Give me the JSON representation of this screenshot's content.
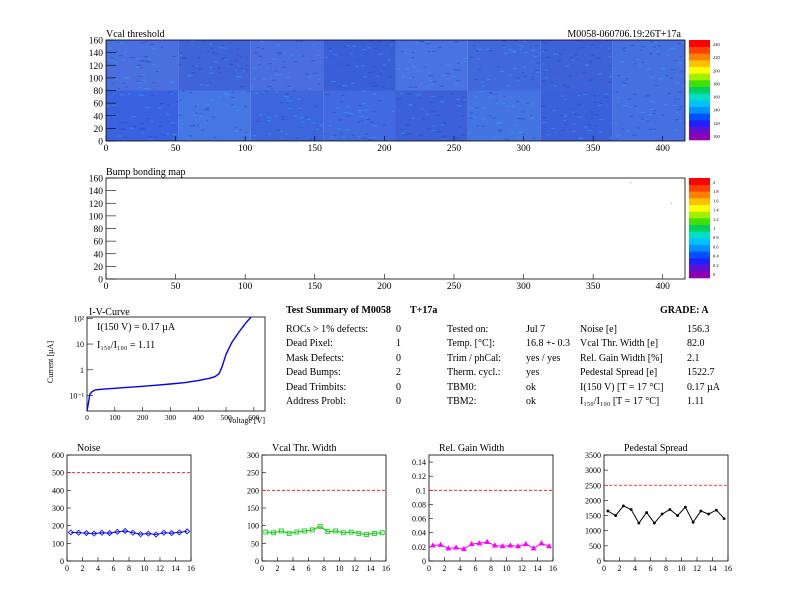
{
  "module_label": "M0058-060706.19:26T+17a",
  "maps": [
    {
      "title": "Vcal threshold",
      "xlim": [
        0,
        416
      ],
      "ylim": [
        0,
        160
      ],
      "xticks": [
        "0",
        "50",
        "100",
        "150",
        "200",
        "250",
        "300",
        "350",
        "400"
      ],
      "yticks": [
        "0",
        "20",
        "40",
        "60",
        "80",
        "100",
        "120",
        "140",
        "160"
      ],
      "zticks": [
        "100",
        "120",
        "140",
        "160",
        "180",
        "200",
        "220",
        "240"
      ],
      "roc_grid": {
        "cols": 8,
        "rows": 2,
        "roc_width": 52,
        "roc_height": 80
      }
    },
    {
      "title": "Bump bonding map",
      "xlim": [
        0,
        416
      ],
      "ylim": [
        0,
        160
      ],
      "xticks": [
        "0",
        "50",
        "100",
        "150",
        "200",
        "250",
        "300",
        "350",
        "400"
      ],
      "yticks": [
        "0",
        "20",
        "40",
        "60",
        "80",
        "100",
        "120",
        "140",
        "160"
      ],
      "zticks": [
        "0",
        "0.2",
        "0.4",
        "0.6",
        "0.8",
        "1",
        "1.2",
        "1.4",
        "1.6",
        "1.8",
        "2"
      ]
    }
  ],
  "iv_curve": {
    "title": "I-V-Curve",
    "xlabel": "Voltage [V]",
    "ylabel": "Current [µA]",
    "xticks": [
      "0",
      "100",
      "200",
      "300",
      "400",
      "500",
      "600"
    ],
    "yticks": [
      "10⁻¹",
      "1",
      "10",
      "10²"
    ],
    "annotation_1": "I(150 V) = 0.17 µA",
    "annotation_2": "I₁₅₀/I₁₀₀ = 1.11",
    "color": "#0000ff"
  },
  "summary": {
    "heading_left": "Test Summary of M0058",
    "heading_mid": "T+17a",
    "grade": "GRADE:  A",
    "col1": [
      {
        "label": "ROCs > 1% defects:",
        "value": "0"
      },
      {
        "label": "Dead Pixel:",
        "value": "1"
      },
      {
        "label": "Mask Defects:",
        "value": "0"
      },
      {
        "label": "Dead Bumps:",
        "value": "2"
      },
      {
        "label": "Dead Trimbits:",
        "value": "0"
      },
      {
        "label": "Address Probl:",
        "value": "0"
      }
    ],
    "col2": [
      {
        "label": "Tested on:",
        "value": "Jul 7"
      },
      {
        "label": "Temp. [°C]:",
        "value": "16.8 +- 0.3"
      },
      {
        "label": "Trim / phCal:",
        "value": "yes / yes"
      },
      {
        "label": "Therm. cycl.:",
        "value": "yes"
      },
      {
        "label": "TBM0:",
        "value": "ok"
      },
      {
        "label": "TBM2:",
        "value": "ok"
      }
    ],
    "col3": [
      {
        "label": "Noise [e]",
        "value": "156.3"
      },
      {
        "label": "Vcal Thr. Width [e]",
        "value": "82.0"
      },
      {
        "label": "Rel. Gain Width [%]",
        "value": "2.1"
      },
      {
        "label": "Pedestal Spread [e]",
        "value": "1522.7"
      },
      {
        "label": "I(150 V) [T = 17 °C]",
        "value": "0.17 µA"
      },
      {
        "label": "I₁₅₀/I₁₀₀  [T = 17 °C]",
        "value": "1.11"
      }
    ]
  },
  "chart_data": [
    {
      "type": "line",
      "title": "Noise",
      "x": [
        0,
        1,
        2,
        3,
        4,
        5,
        6,
        7,
        8,
        9,
        10,
        11,
        12,
        13,
        14,
        15
      ],
      "values": [
        162,
        160,
        158,
        155,
        160,
        158,
        165,
        170,
        160,
        152,
        155,
        150,
        160,
        158,
        162,
        168
      ],
      "xlim": [
        0,
        16
      ],
      "ylim": [
        0,
        600
      ],
      "xticks": [
        "0",
        "2",
        "4",
        "6",
        "8",
        "10",
        "12",
        "14",
        "16"
      ],
      "yticks": [
        "0",
        "100",
        "200",
        "300",
        "400",
        "500",
        "600"
      ],
      "limit": 500,
      "marker": "diamond",
      "color": "#0000ff"
    },
    {
      "type": "line",
      "title": "Vcal Thr. Width",
      "x": [
        0,
        1,
        2,
        3,
        4,
        5,
        6,
        7,
        8,
        9,
        10,
        11,
        12,
        13,
        14,
        15
      ],
      "values": [
        82,
        80,
        85,
        78,
        82,
        85,
        88,
        98,
        83,
        85,
        80,
        82,
        78,
        75,
        78,
        80
      ],
      "xlim": [
        0,
        16
      ],
      "ylim": [
        0,
        300
      ],
      "xticks": [
        "0",
        "2",
        "4",
        "6",
        "8",
        "10",
        "12",
        "14",
        "16"
      ],
      "yticks": [
        "0",
        "50",
        "100",
        "150",
        "200",
        "250",
        "300"
      ],
      "limit": 200,
      "marker": "square",
      "color": "#00cc00"
    },
    {
      "type": "line",
      "title": "Rel. Gain Width",
      "x": [
        0,
        1,
        2,
        3,
        4,
        5,
        6,
        7,
        8,
        9,
        10,
        11,
        12,
        13,
        14,
        15
      ],
      "values": [
        0.022,
        0.023,
        0.018,
        0.019,
        0.017,
        0.024,
        0.025,
        0.027,
        0.022,
        0.021,
        0.022,
        0.021,
        0.024,
        0.018,
        0.025,
        0.021
      ],
      "xlim": [
        0,
        16
      ],
      "ylim": [
        0,
        0.15
      ],
      "xticks": [
        "0",
        "2",
        "4",
        "6",
        "8",
        "10",
        "12",
        "14",
        "16"
      ],
      "yticks": [
        "0",
        "0.02",
        "0.04",
        "0.06",
        "0.08",
        "0.1",
        "0.12",
        "0.14"
      ],
      "limit": 0.1,
      "marker": "triangle",
      "color": "#ff00ff"
    },
    {
      "type": "line",
      "title": "Pedestal Spread",
      "x": [
        0,
        1,
        2,
        3,
        4,
        5,
        6,
        7,
        8,
        9,
        10,
        11,
        12,
        13,
        14,
        15
      ],
      "values": [
        1650,
        1500,
        1820,
        1700,
        1250,
        1600,
        1250,
        1550,
        1700,
        1500,
        1780,
        1280,
        1650,
        1550,
        1680,
        1400
      ],
      "xlim": [
        0,
        16
      ],
      "ylim": [
        0,
        3500
      ],
      "xticks": [
        "0",
        "2",
        "4",
        "6",
        "8",
        "10",
        "12",
        "14",
        "16"
      ],
      "yticks": [
        "0",
        "500",
        "1000",
        "1500",
        "2000",
        "2500",
        "3000",
        "3500"
      ],
      "limit": 2500,
      "marker": "dot",
      "color": "#000000"
    }
  ]
}
